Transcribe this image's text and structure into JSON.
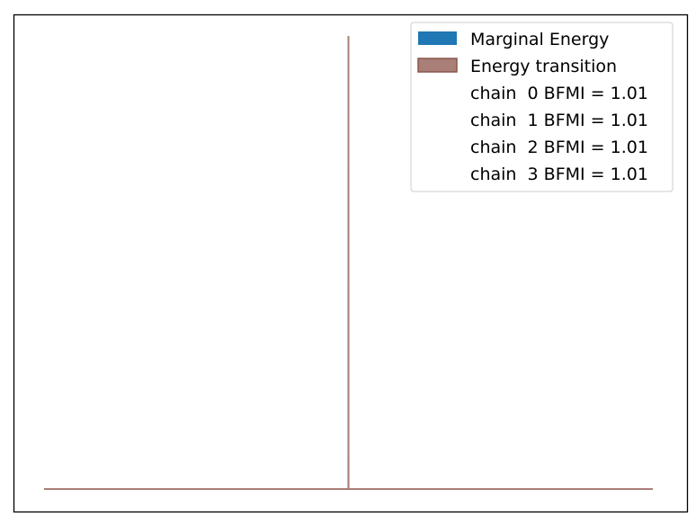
{
  "chart_data": {
    "type": "area",
    "title": "",
    "xlabel": "",
    "ylabel": "",
    "grid": false,
    "axes_ticks": false,
    "legend_position": "top-right",
    "x_range": [
      -1,
      1
    ],
    "y_range": [
      0,
      1
    ],
    "series": [
      {
        "name": "Marginal Energy",
        "color": "#1f77b4",
        "style": "filled",
        "points": [
          [
            -1,
            0
          ],
          [
            -0.0001,
            0
          ],
          [
            0,
            1
          ],
          [
            0.0001,
            0
          ],
          [
            1,
            0
          ]
        ]
      },
      {
        "name": "Energy transition",
        "color": "#a97f77",
        "style": "filled",
        "points": [
          [
            -1,
            0
          ],
          [
            -0.0001,
            0
          ],
          [
            0,
            1
          ],
          [
            0.0001,
            0
          ],
          [
            1,
            0
          ]
        ]
      }
    ],
    "legend": {
      "entries": [
        {
          "label": "Marginal Energy",
          "color": "#1f77b4",
          "swatch": true
        },
        {
          "label": "Energy transition",
          "color": "#a97f77",
          "edge": "#8c564b",
          "swatch": true
        },
        {
          "label": "chain  0 BFMI = 1.01",
          "swatch": false
        },
        {
          "label": "chain  1 BFMI = 1.01",
          "swatch": false
        },
        {
          "label": "chain  2 BFMI = 1.01",
          "swatch": false
        },
        {
          "label": "chain  3 BFMI = 1.01",
          "swatch": false
        }
      ]
    }
  }
}
